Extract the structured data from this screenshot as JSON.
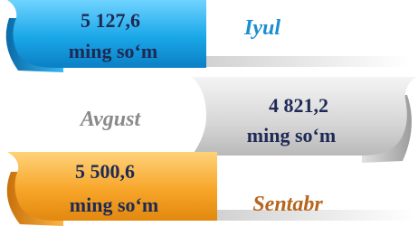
{
  "items": [
    {
      "value": "5 127,6",
      "unit": "ming so‘m",
      "month": "Iyul"
    },
    {
      "value": "4 821,2",
      "unit": "ming so‘m",
      "month": "Avgust"
    },
    {
      "value": "5 500,6",
      "unit": "ming so‘m",
      "month": "Sentabr"
    }
  ]
}
